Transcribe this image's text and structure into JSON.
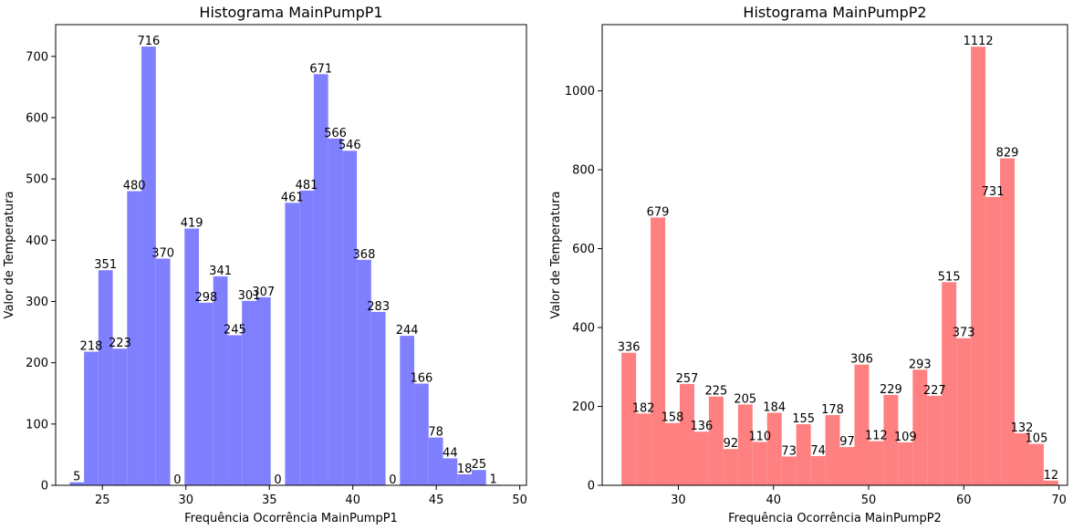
{
  "chart_data": [
    {
      "type": "bar",
      "title": "Histograma MainPumpP1",
      "xlabel": "Frequência Ocorrência MainPumpP1",
      "ylabel": "Valor de Temperatura",
      "xlim": [
        22.2,
        50.4
      ],
      "ylim": [
        0,
        751.8
      ],
      "xticks": [
        25,
        30,
        35,
        40,
        45,
        50
      ],
      "yticks": [
        0,
        100,
        200,
        300,
        400,
        500,
        600,
        700
      ],
      "bin_edges": [
        23.04,
        23.9,
        24.76,
        25.62,
        26.48,
        27.34,
        28.2,
        29.06,
        29.92,
        30.78,
        31.64,
        32.5,
        33.36,
        34.22,
        35.08,
        35.94,
        36.8,
        37.66,
        38.52,
        39.38,
        40.24,
        41.1,
        41.96,
        42.82,
        43.68,
        44.54,
        45.4,
        46.26,
        47.12,
        47.98,
        48.84
      ],
      "values": [
        5,
        218,
        351,
        223,
        480,
        716,
        370,
        0,
        419,
        298,
        341,
        245,
        301,
        307,
        0,
        461,
        481,
        671,
        566,
        546,
        368,
        283,
        0,
        244,
        166,
        78,
        44,
        18,
        25,
        1
      ],
      "color": "#8080ff",
      "grid": false
    },
    {
      "type": "bar",
      "title": "Histograma MainPumpP2",
      "xlabel": "Frequência Ocorrência MainPumpP2",
      "ylabel": "Valor de Temperatura",
      "xlim": [
        22.0,
        70.9
      ],
      "ylim": [
        0,
        1168
      ],
      "xticks": [
        30,
        40,
        50,
        60,
        70
      ],
      "yticks": [
        0,
        200,
        400,
        600,
        800,
        1000
      ],
      "bin_edges": [
        24.03,
        25.56,
        27.09,
        28.62,
        30.15,
        31.68,
        33.21,
        34.74,
        36.27,
        37.8,
        39.33,
        40.86,
        42.39,
        43.92,
        45.45,
        46.98,
        48.51,
        50.04,
        51.57,
        53.1,
        54.63,
        56.16,
        57.69,
        59.22,
        60.75,
        62.28,
        63.81,
        65.34,
        66.87,
        68.4,
        69.93
      ],
      "values": [
        336,
        182,
        679,
        158,
        257,
        136,
        225,
        92,
        205,
        110,
        184,
        73,
        155,
        74,
        178,
        97,
        306,
        112,
        229,
        109,
        293,
        227,
        515,
        373,
        1112,
        731,
        829,
        132,
        105,
        12
      ],
      "color": "#ff8080",
      "grid": false
    }
  ]
}
